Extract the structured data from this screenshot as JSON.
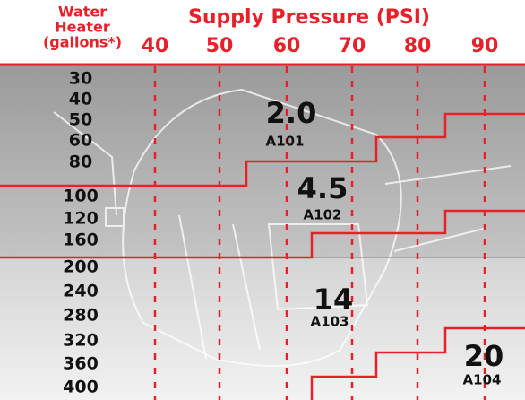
{
  "header": {
    "title": "Supply Pressure (PSI)",
    "row_label": [
      "Water",
      "Heater",
      "(gallons*)"
    ]
  },
  "pressures": [
    40,
    50,
    60,
    70,
    80,
    90
  ],
  "capacities": [
    30,
    40,
    50,
    60,
    80,
    100,
    120,
    160,
    200,
    240,
    280,
    320,
    360,
    400
  ],
  "zones": [
    {
      "size": "2.0",
      "model": "A101"
    },
    {
      "size": "4.5",
      "model": "A102"
    },
    {
      "size": "14",
      "model": "A103"
    },
    {
      "size": "20",
      "model": "A104"
    }
  ]
}
